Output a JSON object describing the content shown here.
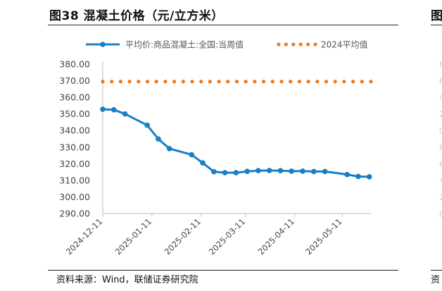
{
  "title": "图38 混凝土价格（元/立方米）",
  "source": "资料来源：Wind，联储证券研究院",
  "chart_data": {
    "type": "line",
    "title": "图38 混凝土价格（元/立方米）",
    "xlabel": "",
    "ylabel": "",
    "ylim": [
      290,
      380
    ],
    "yticks": [
      "380.00",
      "370.00",
      "360.00",
      "350.00",
      "340.00",
      "330.00",
      "320.00",
      "310.00",
      "300.00",
      "290.00"
    ],
    "x_tick_labels": [
      "2024-12-11",
      "2025-01-11",
      "2025-02-11",
      "2025-03-11",
      "2025-04-11",
      "2025-05-11"
    ],
    "x_tick_dates": [
      "2024-12-11",
      "2025-01-11",
      "2025-02-11",
      "2025-03-11",
      "2025-04-11",
      "2025-05-11"
    ],
    "x_range": [
      "2024-12-11",
      "2025-05-29"
    ],
    "legend_position": "top",
    "series": [
      {
        "name": "平均价:商品混凝土:全国:当周值",
        "color": "#1a7fc7",
        "style": "line-marker",
        "dates": [
          "2024-12-11",
          "2024-12-18",
          "2024-12-25",
          "2025-01-08",
          "2025-01-15",
          "2025-01-22",
          "2025-02-05",
          "2025-02-12",
          "2025-02-19",
          "2025-02-26",
          "2025-03-05",
          "2025-03-12",
          "2025-03-19",
          "2025-03-26",
          "2025-04-02",
          "2025-04-09",
          "2025-04-16",
          "2025-04-23",
          "2025-04-30",
          "2025-05-14",
          "2025-05-21",
          "2025-05-28"
        ],
        "values": [
          352.8,
          352.5,
          350.0,
          343.2,
          334.9,
          329.1,
          325.4,
          320.5,
          315.2,
          314.6,
          314.6,
          315.4,
          315.8,
          315.9,
          315.8,
          315.5,
          315.5,
          315.3,
          315.3,
          313.5,
          312.3,
          312.1
        ]
      },
      {
        "name": "2024平均值",
        "color": "#f07a1e",
        "style": "dotted",
        "dates": [
          "2024-12-11",
          "2025-05-29"
        ],
        "values": [
          369.5,
          369.5
        ]
      }
    ]
  },
  "right_strip": {
    "title_fragment": "图",
    "ghost_ticks": [
      "8",
      "6",
      "4",
      "2",
      "0",
      "8",
      "6",
      "4",
      "2",
      "0"
    ],
    "source_fragment": "资"
  }
}
